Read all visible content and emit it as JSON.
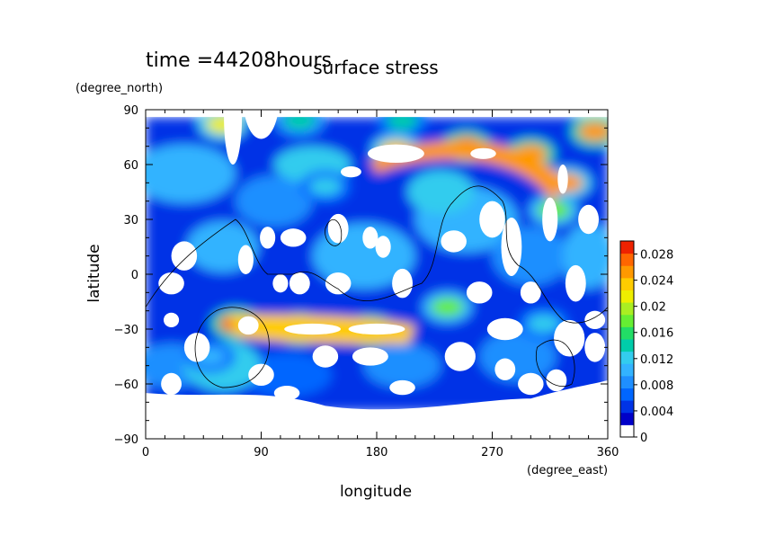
{
  "chart_data": {
    "type": "heatmap",
    "title": "surface stress",
    "subtitle": "time =44208hours",
    "xlabel": "longitude",
    "ylabel": "latitude",
    "xunit": "(degree_east)",
    "yunit": "(degree_north)",
    "xlim": [
      0,
      360
    ],
    "ylim": [
      -90,
      90
    ],
    "xticks": [
      0,
      90,
      180,
      270,
      360
    ],
    "yticks": [
      90,
      60,
      30,
      0,
      -30,
      -60,
      -90
    ],
    "xtick_labels": [
      "0",
      "90",
      "180",
      "270",
      "360"
    ],
    "ytick_labels": [
      "90",
      "60",
      "30",
      "0",
      "−30",
      "−60",
      "−90"
    ],
    "colorbar": {
      "min": 0,
      "max": 0.03,
      "ticks": [
        0,
        0.004,
        0.008,
        0.012,
        0.016,
        0.02,
        0.024,
        0.028
      ],
      "tick_labels": [
        "0",
        "0.004",
        "0.008",
        "0.012",
        "0.016",
        "0.02",
        "0.024",
        "0.028"
      ],
      "colors": [
        "#ffffff",
        "#0000c8",
        "#0033e6",
        "#0066ff",
        "#1f8fff",
        "#33b3ff",
        "#33ccee",
        "#00ccaa",
        "#22dd66",
        "#66ee33",
        "#aaee22",
        "#eeee00",
        "#ffcc00",
        "#ff9900",
        "#ff6600",
        "#ee2200"
      ]
    },
    "field_features": [
      {
        "lon": 60,
        "lat": 82,
        "value": 0.022
      },
      {
        "lon": 120,
        "lat": 84,
        "value": 0.014
      },
      {
        "lon": 200,
        "lat": 84,
        "value": 0.013
      },
      {
        "lon": 350,
        "lat": 78,
        "value": 0.026
      },
      {
        "lon": 195,
        "lat": 68,
        "value": 0.024
      },
      {
        "lon": 250,
        "lat": 70,
        "value": 0.027
      },
      {
        "lon": 300,
        "lat": 66,
        "value": 0.026
      },
      {
        "lon": 328,
        "lat": 50,
        "value": 0.025
      },
      {
        "lon": 318,
        "lat": 35,
        "value": 0.018
      },
      {
        "lon": 70,
        "lat": -27,
        "value": 0.028
      },
      {
        "lon": 120,
        "lat": -30,
        "value": 0.026
      },
      {
        "lon": 175,
        "lat": -31,
        "value": 0.027
      },
      {
        "lon": 235,
        "lat": -18,
        "value": 0.018
      },
      {
        "lon": 310,
        "lat": -27,
        "value": 0.012
      },
      {
        "lon": 50,
        "lat": -45,
        "value": 0.01
      },
      {
        "lon": 140,
        "lat": 48,
        "value": 0.012
      }
    ]
  }
}
